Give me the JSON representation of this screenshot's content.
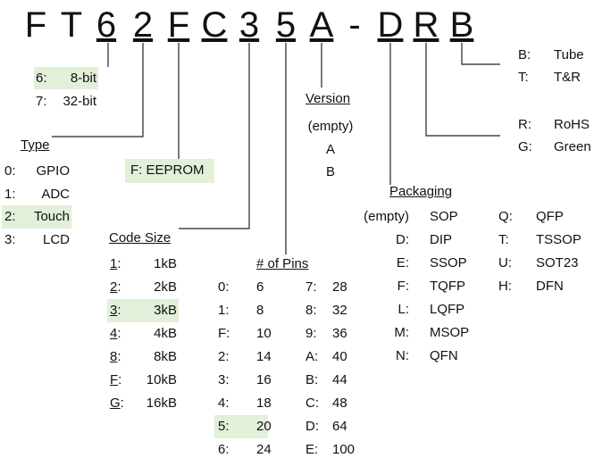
{
  "part_number": [
    "F",
    "T",
    "6",
    "2",
    "F",
    "C",
    "3",
    "5",
    "A",
    "-",
    "D",
    "R",
    "B"
  ],
  "underlined": [
    2,
    3,
    4,
    5,
    6,
    7,
    8,
    10,
    11,
    12
  ],
  "highlight_color": "#e2efd9",
  "bits": [
    {
      "k": "6:",
      "v": "8-bit",
      "hl": true
    },
    {
      "k": "7:",
      "v": "32-bit"
    }
  ],
  "type": {
    "title": "Type",
    "items": [
      {
        "k": "0:",
        "v": "GPIO"
      },
      {
        "k": "1:",
        "v": "ADC"
      },
      {
        "k": "2:",
        "v": "Touch",
        "hl": true
      },
      {
        "k": "3:",
        "v": "LCD"
      }
    ]
  },
  "memory": "F: EEPROM",
  "code_size": {
    "title": "Code Size",
    "items": [
      {
        "k": "1",
        "v": "1kB"
      },
      {
        "k": "2",
        "v": "2kB"
      },
      {
        "k": "3",
        "v": "3kB",
        "hl": true
      },
      {
        "k": "4",
        "v": "4kB"
      },
      {
        "k": "8",
        "v": "8kB"
      },
      {
        "k": "F",
        "v": "10kB"
      },
      {
        "k": "G",
        "v": "16kB"
      }
    ]
  },
  "pins": {
    "title": "# of Pins",
    "col1": [
      [
        "0:",
        "6"
      ],
      [
        "1:",
        "8"
      ],
      [
        "F:",
        "10"
      ],
      [
        "2:",
        "14"
      ],
      [
        "3:",
        "16"
      ],
      [
        "4:",
        "18"
      ],
      [
        "5:",
        "20"
      ],
      [
        "6:",
        "24"
      ]
    ],
    "col2": [
      [
        "7:",
        "28"
      ],
      [
        "8:",
        "32"
      ],
      [
        "9:",
        "36"
      ],
      [
        "A:",
        "40"
      ],
      [
        "B:",
        "44"
      ],
      [
        "C:",
        "48"
      ],
      [
        "D:",
        "64"
      ],
      [
        "E:",
        "100"
      ]
    ]
  },
  "version": {
    "title": "Version",
    "items": [
      "(empty)",
      "A",
      "B"
    ]
  },
  "packaging": {
    "title": "Packaging",
    "col1": [
      [
        "(empty)",
        "SOP"
      ],
      [
        "D:",
        "DIP"
      ],
      [
        "E:",
        "SSOP"
      ],
      [
        "F:",
        "TQFP"
      ],
      [
        "L:",
        "LQFP"
      ],
      [
        "M:",
        "MSOP"
      ],
      [
        "N:",
        "QFN"
      ]
    ],
    "col2": [
      [
        "Q:",
        "QFP"
      ],
      [
        "T:",
        "TSSOP"
      ],
      [
        "U:",
        "SOT23"
      ],
      [
        "H:",
        "DFN"
      ]
    ]
  },
  "compliance": [
    {
      "k": "R:",
      "v": "RoHS"
    },
    {
      "k": "G:",
      "v": "Green"
    }
  ],
  "shipping": [
    {
      "k": "B:",
      "v": "Tube"
    },
    {
      "k": "T:",
      "v": "T&R"
    }
  ]
}
